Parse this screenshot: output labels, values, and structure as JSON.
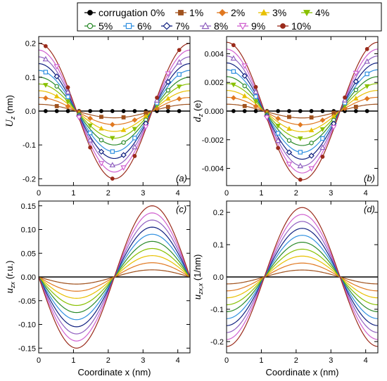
{
  "legend": {
    "entries": [
      {
        "label": "corrugation 0%",
        "color": "#000000",
        "marker": "circle"
      },
      {
        "label": "1%",
        "color": "#a0521e",
        "marker": "square"
      },
      {
        "label": "2%",
        "color": "#e07820",
        "marker": "diamond"
      },
      {
        "label": "3%",
        "color": "#e8c000",
        "marker": "triangle-up"
      },
      {
        "label": "4%",
        "color": "#88c000",
        "marker": "triangle-down"
      },
      {
        "label": "5%",
        "color": "#2a8a2a",
        "marker": "circle-open"
      },
      {
        "label": "6%",
        "color": "#3090e0",
        "marker": "square-open"
      },
      {
        "label": "7%",
        "color": "#102080",
        "marker": "diamond-open"
      },
      {
        "label": "8%",
        "color": "#9060c0",
        "marker": "triangle-up-open"
      },
      {
        "label": "9%",
        "color": "#d060d0",
        "marker": "triangle-down-open"
      },
      {
        "label": "10%",
        "color": "#9a2a1a",
        "marker": "circle"
      }
    ]
  },
  "chart_data": [
    {
      "panel": "(a)",
      "type": "line",
      "ylabel_main": "U",
      "ylabel_sub": "z",
      "ylabel_unit": " (nm)",
      "xlabel": "",
      "xlim": [
        0,
        4.35
      ],
      "ylim": [
        -0.22,
        0.22
      ],
      "xticks": [
        0,
        1,
        2,
        3,
        4
      ],
      "xtick_labels": [
        "0",
        "1",
        "2",
        "3",
        "4"
      ],
      "yticks": [
        -0.2,
        -0.1,
        0.0,
        0.1,
        0.2
      ],
      "ytick_labels": [
        "-0.2",
        "-0.1",
        "0.0",
        "0.1",
        "0.2"
      ],
      "curve": "cos",
      "amplitudes": [
        0,
        0.02,
        0.04,
        0.06,
        0.08,
        0.1,
        0.12,
        0.14,
        0.16,
        0.18,
        0.2
      ],
      "markers": true
    },
    {
      "panel": "(b)",
      "type": "line",
      "ylabel_main": "d",
      "ylabel_sub": "z",
      "ylabel_unit": " (e)",
      "xlabel": "",
      "xlim": [
        0,
        4.35
      ],
      "ylim": [
        -0.0052,
        0.0052
      ],
      "xticks": [
        0,
        1,
        2,
        3,
        4
      ],
      "xtick_labels": [
        "0",
        "1",
        "2",
        "3",
        "4"
      ],
      "yticks": [
        -0.004,
        -0.002,
        0.0,
        0.002,
        0.004
      ],
      "ytick_labels": [
        "-0.004",
        "-0.002",
        "0.000",
        "0.002",
        "0.004"
      ],
      "curve": "cos",
      "amplitudes": [
        0,
        0.00048,
        0.00096,
        0.00144,
        0.00192,
        0.0024,
        0.00288,
        0.00336,
        0.00384,
        0.00432,
        0.0048
      ],
      "markers": true
    },
    {
      "panel": "(c)",
      "type": "line",
      "ylabel_main": "u",
      "ylabel_sub": "zx",
      "ylabel_unit": " (r.u.)",
      "xlabel": "Coordinate  x (nm)",
      "xlim": [
        0,
        4.35
      ],
      "ylim": [
        -0.16,
        0.16
      ],
      "xticks": [
        0,
        1,
        2,
        3,
        4
      ],
      "xtick_labels": [
        "0",
        "1",
        "2",
        "3",
        "4"
      ],
      "yticks": [
        -0.15,
        -0.1,
        -0.05,
        0.0,
        0.05,
        0.1,
        0.15
      ],
      "ytick_labels": [
        "-0.15",
        "-0.10",
        "-0.05",
        "0.00",
        "0.05",
        "0.10",
        "0.15"
      ],
      "curve": "negsin",
      "amplitudes": [
        0,
        0.015,
        0.03,
        0.045,
        0.06,
        0.075,
        0.09,
        0.105,
        0.12,
        0.135,
        0.15
      ],
      "markers": false
    },
    {
      "panel": "(d)",
      "type": "line",
      "ylabel_main": "u",
      "ylabel_sub": "zx,x",
      "ylabel_unit": " (1/nm)",
      "xlabel": "Coordinate  x (nm)",
      "xlim": [
        0,
        4.35
      ],
      "ylim": [
        -0.235,
        0.235
      ],
      "xticks": [
        0,
        1,
        2,
        3,
        4
      ],
      "xtick_labels": [
        "0",
        "1",
        "2",
        "3",
        "4"
      ],
      "yticks": [
        -0.2,
        -0.1,
        0.0,
        0.1,
        0.2
      ],
      "ytick_labels": [
        "-0.2",
        "-0.1",
        "0.0",
        "0.1",
        "0.2"
      ],
      "curve": "negcos",
      "amplitudes": [
        0,
        0.0215,
        0.043,
        0.0645,
        0.086,
        0.1075,
        0.129,
        0.1505,
        0.172,
        0.1935,
        0.215
      ],
      "markers": false
    }
  ]
}
